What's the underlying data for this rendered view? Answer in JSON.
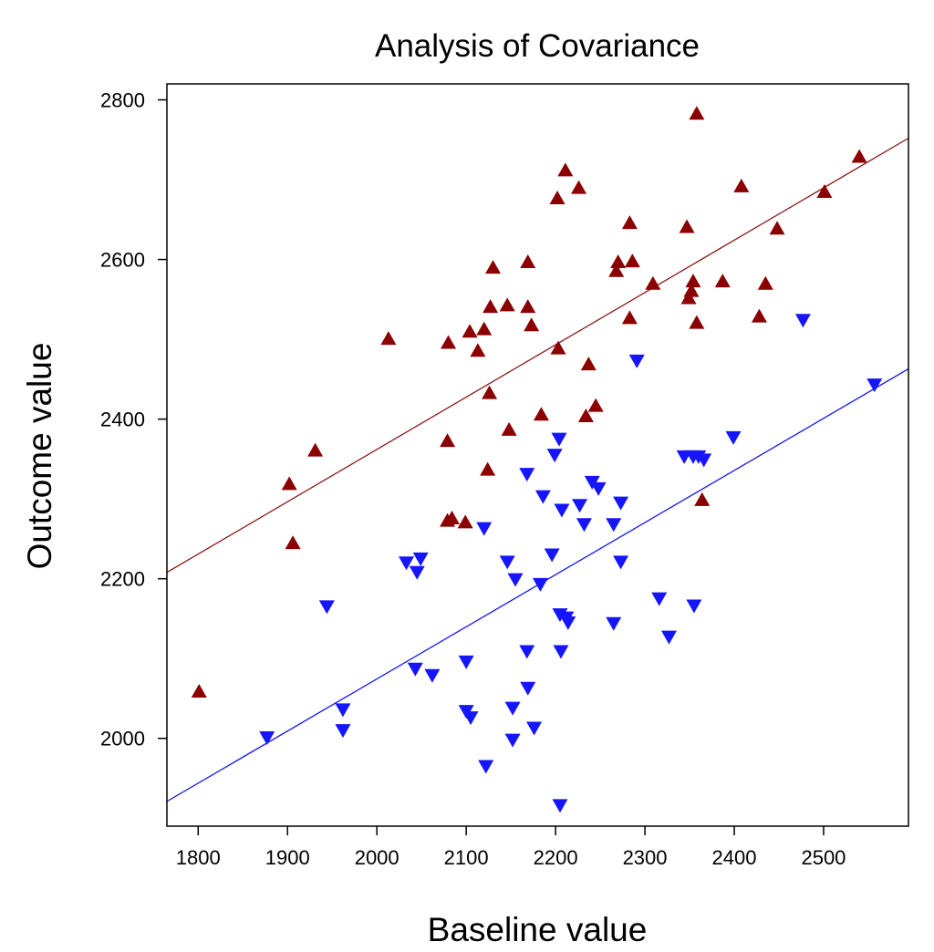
{
  "chart_data": {
    "type": "scatter",
    "title": "Analysis of Covariance",
    "xlabel": "Baseline value",
    "ylabel": "Outcome value",
    "xlim": [
      1765,
      2595
    ],
    "ylim": [
      1890,
      2820
    ],
    "xticks": [
      1800,
      1900,
      2000,
      2100,
      2200,
      2300,
      2400,
      2500
    ],
    "yticks": [
      2000,
      2200,
      2400,
      2600,
      2800
    ],
    "grid": false,
    "legend": "none",
    "series": [
      {
        "marker": "triangle-up",
        "color": "#8b0000",
        "points": [
          [
            1801,
            2058
          ],
          [
            1902,
            2318
          ],
          [
            1906,
            2244
          ],
          [
            1931,
            2360
          ],
          [
            2013,
            2500
          ],
          [
            2079,
            2372
          ],
          [
            2080,
            2495
          ],
          [
            2079,
            2272
          ],
          [
            2084,
            2275
          ],
          [
            2099,
            2270
          ],
          [
            2104,
            2509
          ],
          [
            2113,
            2485
          ],
          [
            2120,
            2512
          ],
          [
            2124,
            2336
          ],
          [
            2126,
            2432
          ],
          [
            2127,
            2540
          ],
          [
            2130,
            2589
          ],
          [
            2146,
            2542
          ],
          [
            2148,
            2386
          ],
          [
            2169,
            2596
          ],
          [
            2169,
            2540
          ],
          [
            2173,
            2517
          ],
          [
            2184,
            2405
          ],
          [
            2202,
            2676
          ],
          [
            2203,
            2488
          ],
          [
            2211,
            2711
          ],
          [
            2226,
            2689
          ],
          [
            2234,
            2403
          ],
          [
            2237,
            2468
          ],
          [
            2245,
            2416
          ],
          [
            2268,
            2585
          ],
          [
            2270,
            2596
          ],
          [
            2283,
            2645
          ],
          [
            2283,
            2526
          ],
          [
            2286,
            2597
          ],
          [
            2309,
            2569
          ],
          [
            2347,
            2640
          ],
          [
            2349,
            2551
          ],
          [
            2352,
            2560
          ],
          [
            2354,
            2572
          ],
          [
            2358,
            2782
          ],
          [
            2358,
            2520
          ],
          [
            2364,
            2298
          ],
          [
            2387,
            2572
          ],
          [
            2408,
            2691
          ],
          [
            2428,
            2528
          ],
          [
            2435,
            2569
          ],
          [
            2448,
            2638
          ],
          [
            2501,
            2684
          ],
          [
            2540,
            2728
          ]
        ],
        "fit": {
          "x0": 1765,
          "y0": 2208,
          "x1": 2595,
          "y1": 2752,
          "color": "#8b1a1a"
        }
      },
      {
        "marker": "triangle-down",
        "color": "#1515ff",
        "points": [
          [
            1877,
            2002
          ],
          [
            1944,
            2166
          ],
          [
            1962,
            2037
          ],
          [
            1962,
            2011
          ],
          [
            2033,
            2221
          ],
          [
            2045,
            2209
          ],
          [
            2049,
            2226
          ],
          [
            2043,
            2088
          ],
          [
            2062,
            2080
          ],
          [
            2100,
            2097
          ],
          [
            2100,
            2035
          ],
          [
            2105,
            2027
          ],
          [
            2120,
            2264
          ],
          [
            2122,
            1966
          ],
          [
            2146,
            2222
          ],
          [
            2152,
            2039
          ],
          [
            2152,
            1999
          ],
          [
            2155,
            2200
          ],
          [
            2168,
            2332
          ],
          [
            2168,
            2110
          ],
          [
            2169,
            2064
          ],
          [
            2176,
            2014
          ],
          [
            2183,
            2194
          ],
          [
            2186,
            2304
          ],
          [
            2196,
            2231
          ],
          [
            2199,
            2356
          ],
          [
            2204,
            2376
          ],
          [
            2205,
            2156
          ],
          [
            2206,
            2110
          ],
          [
            2205,
            1917
          ],
          [
            2207,
            2287
          ],
          [
            2212,
            2152
          ],
          [
            2214,
            2146
          ],
          [
            2227,
            2293
          ],
          [
            2232,
            2269
          ],
          [
            2241,
            2322
          ],
          [
            2248,
            2314
          ],
          [
            2265,
            2269
          ],
          [
            2265,
            2145
          ],
          [
            2273,
            2296
          ],
          [
            2273,
            2222
          ],
          [
            2291,
            2474
          ],
          [
            2316,
            2176
          ],
          [
            2327,
            2128
          ],
          [
            2344,
            2354
          ],
          [
            2354,
            2354
          ],
          [
            2355,
            2167
          ],
          [
            2360,
            2354
          ],
          [
            2366,
            2350
          ],
          [
            2399,
            2378
          ],
          [
            2477,
            2525
          ],
          [
            2557,
            2444
          ]
        ],
        "fit": {
          "x0": 1765,
          "y0": 1921,
          "x1": 2595,
          "y1": 2463,
          "color": "#1515ff"
        }
      }
    ]
  }
}
